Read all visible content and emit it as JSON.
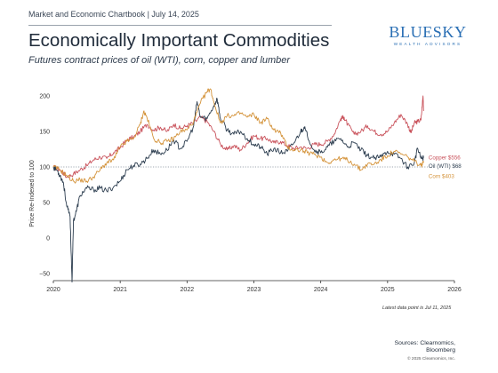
{
  "header": {
    "kicker": "Market and Economic Chartbook | July 14, 2025",
    "title": "Economically Important Commodities",
    "subtitle": "Futures contract prices of oil (WTI), corn, copper and lumber"
  },
  "logo": {
    "main": "BLUESKY",
    "sub": "WEALTH ADVISORS"
  },
  "footer": {
    "note": "Latest data point is Jul 11, 2025",
    "sources_line1": "Sources: Clearnomics,",
    "sources_line2": "Bloomberg",
    "copyright": "© 2025 Clearnomics, Inc."
  },
  "colors": {
    "copper": "#c9525b",
    "oil": "#2c3d4f",
    "corn": "#d4933a",
    "reference": "#7f8a96",
    "axis": "#333333"
  },
  "chart_data": {
    "type": "line",
    "title": "Economically Important Commodities",
    "subtitle": "Futures contract prices of oil (WTI), corn, copper and lumber",
    "xlabel": "",
    "ylabel": "Price Re-Indexed to 100",
    "xlim": [
      2020,
      2026
    ],
    "ylim": [
      -60,
      210
    ],
    "yticks": [
      -50,
      0,
      50,
      100,
      150,
      200
    ],
    "xticks": [
      2020,
      2021,
      2022,
      2023,
      2024,
      2025,
      2026
    ],
    "reference_line": {
      "y": 100,
      "style": "dotted"
    },
    "grid": false,
    "series": [
      {
        "name": "Copper",
        "end_label": "Copper $556",
        "points": [
          [
            2020.0,
            100
          ],
          [
            2020.1,
            96
          ],
          [
            2020.2,
            86
          ],
          [
            2020.3,
            90
          ],
          [
            2020.4,
            96
          ],
          [
            2020.5,
            102
          ],
          [
            2020.6,
            110
          ],
          [
            2020.7,
            114
          ],
          [
            2020.8,
            112
          ],
          [
            2020.9,
            120
          ],
          [
            2021.0,
            127
          ],
          [
            2021.1,
            138
          ],
          [
            2021.2,
            142
          ],
          [
            2021.3,
            150
          ],
          [
            2021.4,
            160
          ],
          [
            2021.5,
            152
          ],
          [
            2021.6,
            156
          ],
          [
            2021.7,
            150
          ],
          [
            2021.8,
            160
          ],
          [
            2021.9,
            154
          ],
          [
            2022.0,
            158
          ],
          [
            2022.1,
            162
          ],
          [
            2022.2,
            170
          ],
          [
            2022.3,
            164
          ],
          [
            2022.4,
            150
          ],
          [
            2022.5,
            132
          ],
          [
            2022.6,
            124
          ],
          [
            2022.7,
            130
          ],
          [
            2022.8,
            124
          ],
          [
            2022.9,
            134
          ],
          [
            2023.0,
            144
          ],
          [
            2023.1,
            140
          ],
          [
            2023.2,
            140
          ],
          [
            2023.3,
            134
          ],
          [
            2023.4,
            136
          ],
          [
            2023.5,
            130
          ],
          [
            2023.6,
            126
          ],
          [
            2023.7,
            128
          ],
          [
            2023.8,
            126
          ],
          [
            2023.9,
            132
          ],
          [
            2024.0,
            132
          ],
          [
            2024.1,
            136
          ],
          [
            2024.2,
            146
          ],
          [
            2024.3,
            168
          ],
          [
            2024.35,
            170
          ],
          [
            2024.4,
            160
          ],
          [
            2024.5,
            146
          ],
          [
            2024.6,
            150
          ],
          [
            2024.7,
            158
          ],
          [
            2024.8,
            150
          ],
          [
            2024.9,
            146
          ],
          [
            2025.0,
            150
          ],
          [
            2025.1,
            162
          ],
          [
            2025.2,
            174
          ],
          [
            2025.3,
            160
          ],
          [
            2025.35,
            148
          ],
          [
            2025.4,
            162
          ],
          [
            2025.45,
            164
          ],
          [
            2025.5,
            166
          ],
          [
            2025.53,
            200
          ],
          [
            2025.54,
            180
          ]
        ]
      },
      {
        "name": "Oil (WTI)",
        "end_label": "Oil (WTI) $68",
        "points": [
          [
            2020.0,
            100
          ],
          [
            2020.05,
            96
          ],
          [
            2020.1,
            88
          ],
          [
            2020.15,
            78
          ],
          [
            2020.2,
            45
          ],
          [
            2020.25,
            30
          ],
          [
            2020.28,
            -62
          ],
          [
            2020.3,
            24
          ],
          [
            2020.35,
            40
          ],
          [
            2020.4,
            60
          ],
          [
            2020.5,
            70
          ],
          [
            2020.6,
            68
          ],
          [
            2020.7,
            70
          ],
          [
            2020.8,
            66
          ],
          [
            2020.9,
            72
          ],
          [
            2021.0,
            80
          ],
          [
            2021.1,
            96
          ],
          [
            2021.2,
            102
          ],
          [
            2021.3,
            104
          ],
          [
            2021.4,
            112
          ],
          [
            2021.5,
            124
          ],
          [
            2021.6,
            118
          ],
          [
            2021.7,
            124
          ],
          [
            2021.8,
            138
          ],
          [
            2021.9,
            126
          ],
          [
            2022.0,
            136
          ],
          [
            2022.1,
            158
          ],
          [
            2022.15,
            192
          ],
          [
            2022.2,
            170
          ],
          [
            2022.3,
            168
          ],
          [
            2022.4,
            186
          ],
          [
            2022.45,
            196
          ],
          [
            2022.5,
            168
          ],
          [
            2022.6,
            152
          ],
          [
            2022.7,
            146
          ],
          [
            2022.8,
            150
          ],
          [
            2022.9,
            140
          ],
          [
            2023.0,
            132
          ],
          [
            2023.1,
            128
          ],
          [
            2023.2,
            118
          ],
          [
            2023.3,
            126
          ],
          [
            2023.4,
            120
          ],
          [
            2023.5,
            122
          ],
          [
            2023.6,
            134
          ],
          [
            2023.7,
            150
          ],
          [
            2023.75,
            156
          ],
          [
            2023.8,
            144
          ],
          [
            2023.9,
            124
          ],
          [
            2024.0,
            120
          ],
          [
            2024.1,
            128
          ],
          [
            2024.2,
            136
          ],
          [
            2024.3,
            140
          ],
          [
            2024.4,
            128
          ],
          [
            2024.5,
            134
          ],
          [
            2024.6,
            124
          ],
          [
            2024.7,
            116
          ],
          [
            2024.8,
            112
          ],
          [
            2024.9,
            114
          ],
          [
            2025.0,
            122
          ],
          [
            2025.1,
            118
          ],
          [
            2025.2,
            112
          ],
          [
            2025.3,
            100
          ],
          [
            2025.4,
            106
          ],
          [
            2025.45,
            126
          ],
          [
            2025.5,
            112
          ],
          [
            2025.54,
            113
          ]
        ]
      },
      {
        "name": "Corn",
        "end_label": "Corn $403",
        "points": [
          [
            2020.0,
            100
          ],
          [
            2020.1,
            96
          ],
          [
            2020.2,
            88
          ],
          [
            2020.3,
            80
          ],
          [
            2020.4,
            82
          ],
          [
            2020.5,
            80
          ],
          [
            2020.6,
            86
          ],
          [
            2020.7,
            96
          ],
          [
            2020.8,
            106
          ],
          [
            2020.9,
            110
          ],
          [
            2021.0,
            128
          ],
          [
            2021.1,
            136
          ],
          [
            2021.2,
            140
          ],
          [
            2021.3,
            160
          ],
          [
            2021.35,
            178
          ],
          [
            2021.4,
            170
          ],
          [
            2021.5,
            140
          ],
          [
            2021.6,
            134
          ],
          [
            2021.7,
            136
          ],
          [
            2021.8,
            140
          ],
          [
            2021.9,
            150
          ],
          [
            2022.0,
            152
          ],
          [
            2022.1,
            164
          ],
          [
            2022.2,
            190
          ],
          [
            2022.3,
            206
          ],
          [
            2022.35,
            210
          ],
          [
            2022.4,
            192
          ],
          [
            2022.5,
            162
          ],
          [
            2022.6,
            172
          ],
          [
            2022.7,
            172
          ],
          [
            2022.8,
            176
          ],
          [
            2022.9,
            170
          ],
          [
            2023.0,
            174
          ],
          [
            2023.1,
            162
          ],
          [
            2023.2,
            168
          ],
          [
            2023.3,
            152
          ],
          [
            2023.4,
            148
          ],
          [
            2023.5,
            128
          ],
          [
            2023.6,
            124
          ],
          [
            2023.7,
            124
          ],
          [
            2023.8,
            120
          ],
          [
            2023.9,
            118
          ],
          [
            2024.0,
            114
          ],
          [
            2024.1,
            106
          ],
          [
            2024.2,
            110
          ],
          [
            2024.3,
            112
          ],
          [
            2024.4,
            110
          ],
          [
            2024.5,
            104
          ],
          [
            2024.6,
            96
          ],
          [
            2024.7,
            104
          ],
          [
            2024.8,
            104
          ],
          [
            2024.9,
            110
          ],
          [
            2025.0,
            116
          ],
          [
            2025.1,
            122
          ],
          [
            2025.2,
            118
          ],
          [
            2025.3,
            114
          ],
          [
            2025.4,
            108
          ],
          [
            2025.5,
            102
          ],
          [
            2025.54,
            106
          ]
        ]
      }
    ]
  }
}
